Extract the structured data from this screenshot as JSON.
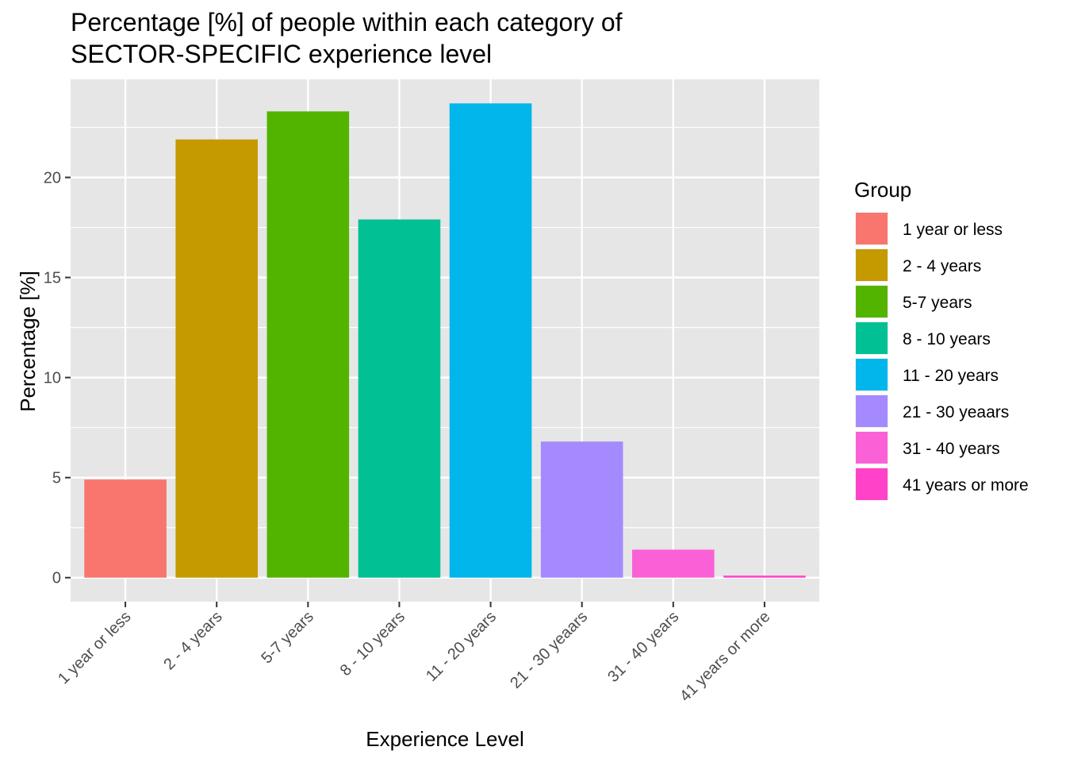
{
  "chart_data": {
    "type": "bar",
    "title_lines": [
      "Percentage [%] of people within each category of",
      "SECTOR-SPECIFIC experience level"
    ],
    "xlabel": "Experience Level",
    "ylabel": "Percentage [%]",
    "categories": [
      "1 year or less",
      "2 - 4 years",
      "5-7 years",
      "8 - 10 years",
      "11 - 20 years",
      "21 - 30 yeaars",
      "31 - 40 years",
      "41 years or more"
    ],
    "values": [
      4.9,
      21.9,
      23.3,
      17.9,
      23.7,
      6.8,
      1.4,
      0.1
    ],
    "colors": [
      "#F8766D",
      "#C49A00",
      "#53B400",
      "#00C094",
      "#00B6EB",
      "#A58AFF",
      "#FB61D7",
      "#FF42C8"
    ],
    "ylim": [
      -1.2,
      24.9
    ],
    "yticks": [
      0,
      5,
      10,
      15,
      20
    ],
    "grid": true,
    "panel_background": "#E6E6E6",
    "legend": {
      "title": "Group",
      "placement": "right"
    }
  }
}
